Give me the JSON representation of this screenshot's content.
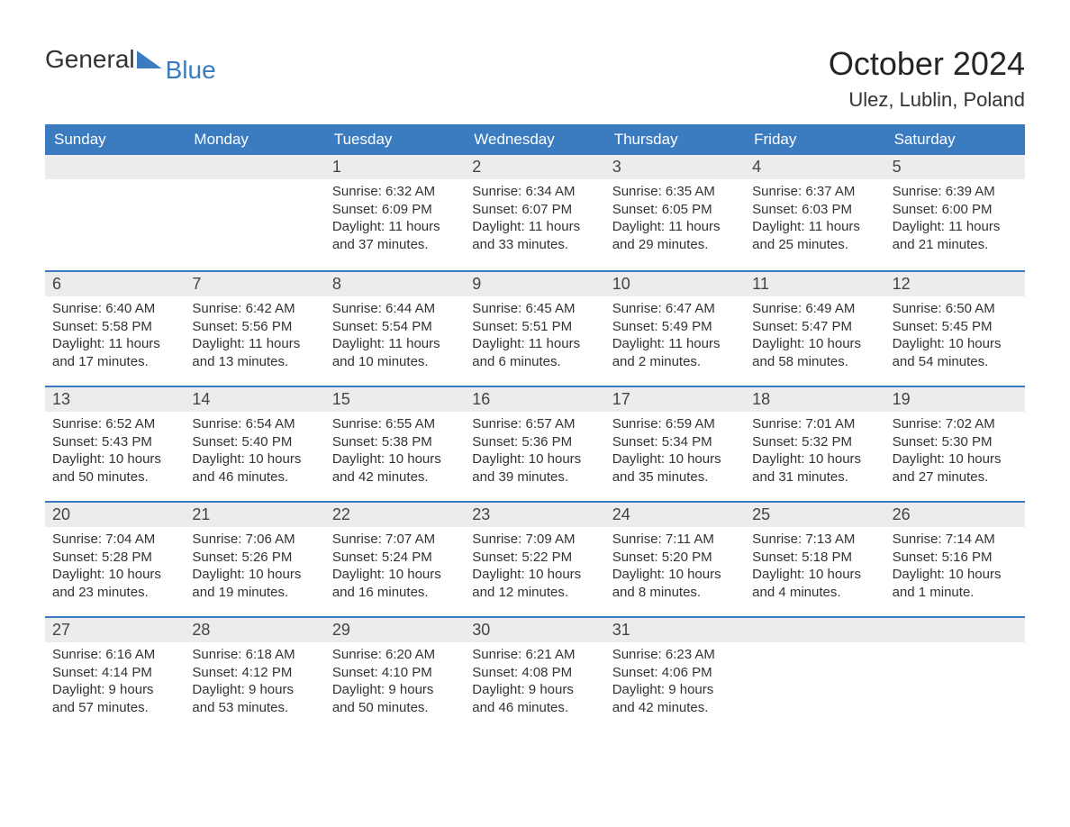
{
  "page": {
    "logo_general": "General",
    "logo_blue": "Blue",
    "month_title": "October 2024",
    "location": "Ulez, Lublin, Poland",
    "header_bg": "#3b7bbf",
    "header_text_color": "#ffffff",
    "date_strip_bg": "#ececec",
    "cell_border_color": "#3b7bbf",
    "body_text_color": "#333333"
  },
  "weekdays": [
    "Sunday",
    "Monday",
    "Tuesday",
    "Wednesday",
    "Thursday",
    "Friday",
    "Saturday"
  ],
  "grid": [
    [
      {
        "date": "",
        "lines": []
      },
      {
        "date": "",
        "lines": []
      },
      {
        "date": "1",
        "lines": [
          "Sunrise: 6:32 AM",
          "Sunset: 6:09 PM",
          "Daylight: 11 hours",
          "and 37 minutes."
        ]
      },
      {
        "date": "2",
        "lines": [
          "Sunrise: 6:34 AM",
          "Sunset: 6:07 PM",
          "Daylight: 11 hours",
          "and 33 minutes."
        ]
      },
      {
        "date": "3",
        "lines": [
          "Sunrise: 6:35 AM",
          "Sunset: 6:05 PM",
          "Daylight: 11 hours",
          "and 29 minutes."
        ]
      },
      {
        "date": "4",
        "lines": [
          "Sunrise: 6:37 AM",
          "Sunset: 6:03 PM",
          "Daylight: 11 hours",
          "and 25 minutes."
        ]
      },
      {
        "date": "5",
        "lines": [
          "Sunrise: 6:39 AM",
          "Sunset: 6:00 PM",
          "Daylight: 11 hours",
          "and 21 minutes."
        ]
      }
    ],
    [
      {
        "date": "6",
        "lines": [
          "Sunrise: 6:40 AM",
          "Sunset: 5:58 PM",
          "Daylight: 11 hours",
          "and 17 minutes."
        ]
      },
      {
        "date": "7",
        "lines": [
          "Sunrise: 6:42 AM",
          "Sunset: 5:56 PM",
          "Daylight: 11 hours",
          "and 13 minutes."
        ]
      },
      {
        "date": "8",
        "lines": [
          "Sunrise: 6:44 AM",
          "Sunset: 5:54 PM",
          "Daylight: 11 hours",
          "and 10 minutes."
        ]
      },
      {
        "date": "9",
        "lines": [
          "Sunrise: 6:45 AM",
          "Sunset: 5:51 PM",
          "Daylight: 11 hours",
          "and 6 minutes."
        ]
      },
      {
        "date": "10",
        "lines": [
          "Sunrise: 6:47 AM",
          "Sunset: 5:49 PM",
          "Daylight: 11 hours",
          "and 2 minutes."
        ]
      },
      {
        "date": "11",
        "lines": [
          "Sunrise: 6:49 AM",
          "Sunset: 5:47 PM",
          "Daylight: 10 hours",
          "and 58 minutes."
        ]
      },
      {
        "date": "12",
        "lines": [
          "Sunrise: 6:50 AM",
          "Sunset: 5:45 PM",
          "Daylight: 10 hours",
          "and 54 minutes."
        ]
      }
    ],
    [
      {
        "date": "13",
        "lines": [
          "Sunrise: 6:52 AM",
          "Sunset: 5:43 PM",
          "Daylight: 10 hours",
          "and 50 minutes."
        ]
      },
      {
        "date": "14",
        "lines": [
          "Sunrise: 6:54 AM",
          "Sunset: 5:40 PM",
          "Daylight: 10 hours",
          "and 46 minutes."
        ]
      },
      {
        "date": "15",
        "lines": [
          "Sunrise: 6:55 AM",
          "Sunset: 5:38 PM",
          "Daylight: 10 hours",
          "and 42 minutes."
        ]
      },
      {
        "date": "16",
        "lines": [
          "Sunrise: 6:57 AM",
          "Sunset: 5:36 PM",
          "Daylight: 10 hours",
          "and 39 minutes."
        ]
      },
      {
        "date": "17",
        "lines": [
          "Sunrise: 6:59 AM",
          "Sunset: 5:34 PM",
          "Daylight: 10 hours",
          "and 35 minutes."
        ]
      },
      {
        "date": "18",
        "lines": [
          "Sunrise: 7:01 AM",
          "Sunset: 5:32 PM",
          "Daylight: 10 hours",
          "and 31 minutes."
        ]
      },
      {
        "date": "19",
        "lines": [
          "Sunrise: 7:02 AM",
          "Sunset: 5:30 PM",
          "Daylight: 10 hours",
          "and 27 minutes."
        ]
      }
    ],
    [
      {
        "date": "20",
        "lines": [
          "Sunrise: 7:04 AM",
          "Sunset: 5:28 PM",
          "Daylight: 10 hours",
          "and 23 minutes."
        ]
      },
      {
        "date": "21",
        "lines": [
          "Sunrise: 7:06 AM",
          "Sunset: 5:26 PM",
          "Daylight: 10 hours",
          "and 19 minutes."
        ]
      },
      {
        "date": "22",
        "lines": [
          "Sunrise: 7:07 AM",
          "Sunset: 5:24 PM",
          "Daylight: 10 hours",
          "and 16 minutes."
        ]
      },
      {
        "date": "23",
        "lines": [
          "Sunrise: 7:09 AM",
          "Sunset: 5:22 PM",
          "Daylight: 10 hours",
          "and 12 minutes."
        ]
      },
      {
        "date": "24",
        "lines": [
          "Sunrise: 7:11 AM",
          "Sunset: 5:20 PM",
          "Daylight: 10 hours",
          "and 8 minutes."
        ]
      },
      {
        "date": "25",
        "lines": [
          "Sunrise: 7:13 AM",
          "Sunset: 5:18 PM",
          "Daylight: 10 hours",
          "and 4 minutes."
        ]
      },
      {
        "date": "26",
        "lines": [
          "Sunrise: 7:14 AM",
          "Sunset: 5:16 PM",
          "Daylight: 10 hours",
          "and 1 minute."
        ]
      }
    ],
    [
      {
        "date": "27",
        "lines": [
          "Sunrise: 6:16 AM",
          "Sunset: 4:14 PM",
          "Daylight: 9 hours",
          "and 57 minutes."
        ]
      },
      {
        "date": "28",
        "lines": [
          "Sunrise: 6:18 AM",
          "Sunset: 4:12 PM",
          "Daylight: 9 hours",
          "and 53 minutes."
        ]
      },
      {
        "date": "29",
        "lines": [
          "Sunrise: 6:20 AM",
          "Sunset: 4:10 PM",
          "Daylight: 9 hours",
          "and 50 minutes."
        ]
      },
      {
        "date": "30",
        "lines": [
          "Sunrise: 6:21 AM",
          "Sunset: 4:08 PM",
          "Daylight: 9 hours",
          "and 46 minutes."
        ]
      },
      {
        "date": "31",
        "lines": [
          "Sunrise: 6:23 AM",
          "Sunset: 4:06 PM",
          "Daylight: 9 hours",
          "and 42 minutes."
        ]
      },
      {
        "date": "",
        "lines": []
      },
      {
        "date": "",
        "lines": []
      }
    ]
  ]
}
